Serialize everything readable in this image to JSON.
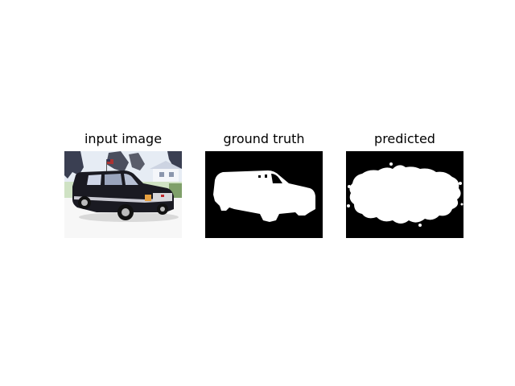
{
  "panels": [
    {
      "title": "input image"
    },
    {
      "title": "ground truth"
    },
    {
      "title": "predicted"
    }
  ],
  "colors": {
    "background": "#ffffff",
    "mask_foreground": "#ffffff",
    "mask_background": "#000000",
    "vehicle_body": "#1a1a22",
    "sky": "#e6ecf4",
    "ground": "#f7f7f7"
  }
}
